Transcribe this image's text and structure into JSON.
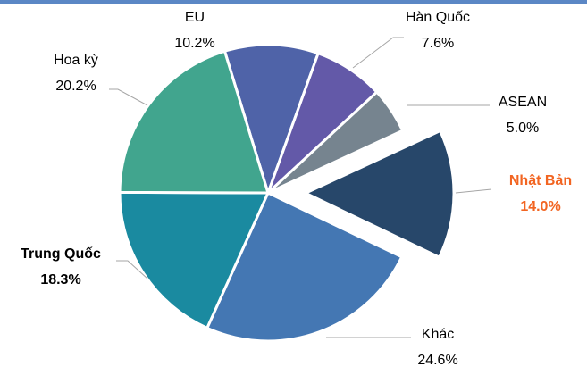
{
  "chart_data": {
    "type": "pie",
    "categories": [
      "EU",
      "Hàn Quốc",
      "ASEAN",
      "Nhật Bản",
      "Khác",
      "Trung Quốc",
      "Hoa kỳ"
    ],
    "values": [
      10.2,
      7.6,
      5.0,
      14.0,
      24.6,
      18.3,
      20.2
    ],
    "value_labels": [
      "10.2%",
      "7.6%",
      "5.0%",
      "14.0%",
      "24.6%",
      "18.3%",
      "20.2%"
    ],
    "colors": [
      "#4f63a8",
      "#6359a8",
      "#76848f",
      "#27476a",
      "#4477b3",
      "#1a8aa0",
      "#41a58e"
    ],
    "exploded": [
      "Nhật Bản"
    ]
  }
}
